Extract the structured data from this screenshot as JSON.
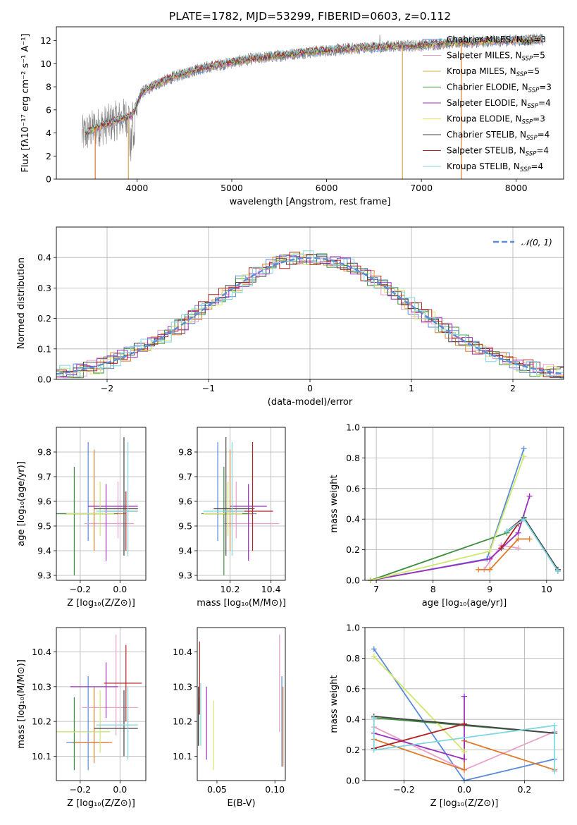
{
  "figure": {
    "title": "PLATE=1782, MJD=53299, FIBERID=0603, z=0.112"
  },
  "chart_data": [
    {
      "id": "spectrum",
      "type": "line",
      "xlabel": "wavelength [Angstrom, rest frame]",
      "ylabel": "Flux [fλ10⁻¹⁷ erg cm⁻² s⁻¹ A⁻¹]",
      "xlim": [
        3150,
        8500
      ],
      "ylim": [
        0,
        13.2
      ],
      "xticks": [
        4000,
        5000,
        6000,
        7000,
        8000
      ],
      "yticks": [
        0,
        2,
        4,
        6,
        8,
        10,
        12
      ],
      "grid": false,
      "legend_position": "top-right",
      "data_color": "#808080",
      "continuum": {
        "x": [
          3420,
          3550,
          3700,
          3850,
          3950,
          4050,
          4200,
          4400,
          4600,
          4800,
          5000,
          5200,
          5500,
          5800,
          6100,
          6400,
          6700,
          7000,
          7300,
          7600,
          7900,
          8280
        ],
        "y": [
          3.8,
          4.4,
          4.8,
          5.3,
          5.5,
          7.5,
          8.2,
          8.9,
          9.4,
          9.8,
          10.1,
          10.4,
          10.7,
          11.0,
          11.2,
          11.4,
          11.5,
          11.6,
          11.8,
          11.9,
          12.0,
          12.1
        ]
      },
      "legend": [
        {
          "name": "Chabrier MILES, Nₛₛₚ=3",
          "label": "Chabrier MILES, N",
          "sub": "SSP",
          "n": "=3",
          "color": "#5b8bd9"
        },
        {
          "name": "Salpeter MILES, Nₛₛₚ=5",
          "label": "Salpeter MILES, N",
          "sub": "SSP",
          "n": "=5",
          "color": "#e8a0c8"
        },
        {
          "name": "Kroupa MILES, Nₛₛₚ=5",
          "label": "Kroupa MILES, N",
          "sub": "SSP",
          "n": "=5",
          "color": "#d9a84a"
        },
        {
          "name": "Chabrier ELODIE, Nₛₛₚ=3",
          "label": "Chabrier ELODIE, N",
          "sub": "SSP",
          "n": "=3",
          "color": "#3e8e3e"
        },
        {
          "name": "Salpeter ELODIE, Nₛₛₚ=4",
          "label": "Salpeter ELODIE, N",
          "sub": "SSP",
          "n": "=4",
          "color": "#9b2fbf"
        },
        {
          "name": "Kroupa ELODIE, Nₛₛₚ=3",
          "label": "Kroupa ELODIE, N",
          "sub": "SSP",
          "n": "=3",
          "color": "#e6e24a"
        },
        {
          "name": "Chabrier STELIB, Nₛₛₚ=4",
          "label": "Chabrier STELIB, N",
          "sub": "SSP",
          "n": "=4",
          "color": "#444444"
        },
        {
          "name": "Salpeter STELIB, Nₛₛₚ=4",
          "label": "Salpeter STELIB, N",
          "sub": "SSP",
          "n": "=4",
          "color": "#b22222"
        },
        {
          "name": "Kroupa STELIB, Nₛₛₚ=4",
          "label": "Kroupa STELIB, N",
          "sub": "SSP",
          "n": "=4",
          "color": "#7fd6e0"
        }
      ]
    },
    {
      "id": "residuals",
      "type": "line",
      "xlabel": "(data-model)/error",
      "ylabel": "Normed distribution",
      "xlim": [
        -2.5,
        2.5
      ],
      "ylim": [
        0,
        0.5
      ],
      "xticks": [
        -2,
        -1,
        0,
        1,
        2
      ],
      "xtick_labels": [
        "−2",
        "−1",
        "0",
        "1",
        "2"
      ],
      "yticks": [
        0.0,
        0.1,
        0.2,
        0.3,
        0.4
      ],
      "grid": true,
      "legend_position": "top-right",
      "reference_curve": {
        "name": "N(0,1)",
        "label": "𝒩(0, 1)",
        "color": "#5b8bd9",
        "style": "dashed"
      },
      "histogram_colors": [
        "#5b8bd9",
        "#e8a0c8",
        "#e07a2a",
        "#3e8e3e",
        "#9b2fbf",
        "#cfe86a",
        "#444444",
        "#b22222",
        "#7fd6e0"
      ]
    },
    {
      "id": "age_vs_Z",
      "type": "scatter",
      "xlabel": "Z [log₁₀(Z/Z⊙)]",
      "ylabel": "age  [log₁₀(age/yr)]",
      "xlim": [
        -0.32,
        0.13
      ],
      "ylim": [
        9.28,
        9.9
      ],
      "xticks": [
        -0.2,
        0.0
      ],
      "xtick_labels": [
        "−0.2",
        "0.0"
      ],
      "yticks": [
        9.3,
        9.4,
        9.5,
        9.6,
        9.7,
        9.8
      ],
      "grid": true,
      "series": [
        {
          "x": -0.16,
          "y": 9.55,
          "xerr": [
            0.16,
            0.09
          ],
          "yerr": [
            0.11,
            0.29
          ],
          "color": "#5b8bd9"
        },
        {
          "x": -0.01,
          "y": 9.51,
          "xerr": [
            0.17,
            0.08
          ],
          "yerr": [
            0.06,
            0.17
          ],
          "color": "#e8a0c8"
        },
        {
          "x": -0.13,
          "y": 9.55,
          "xerr": [
            0.17,
            0.16
          ],
          "yerr": [
            0.15,
            0.26
          ],
          "color": "#e07a2a"
        },
        {
          "x": -0.23,
          "y": 9.55,
          "xerr": [
            0.09,
            0.22
          ],
          "yerr": [
            0.25,
            0.19
          ],
          "color": "#3e8e3e"
        },
        {
          "x": -0.07,
          "y": 9.58,
          "xerr": [
            0.09,
            0.16
          ],
          "yerr": [
            0.22,
            0.09
          ],
          "color": "#9b2fbf"
        },
        {
          "x": -0.1,
          "y": 9.55,
          "xerr": [
            0.17,
            0.07
          ],
          "yerr": [
            0.09,
            0.13
          ],
          "color": "#cfe86a"
        },
        {
          "x": 0.02,
          "y": 9.57,
          "xerr": [
            0.15,
            0.07
          ],
          "yerr": [
            0.19,
            0.29
          ],
          "color": "#444444"
        },
        {
          "x": 0.03,
          "y": 9.56,
          "xerr": [
            0.11,
            0.06
          ],
          "yerr": [
            0.16,
            0.08
          ],
          "color": "#b22222"
        },
        {
          "x": 0.04,
          "y": 9.56,
          "xerr": [
            0.16,
            0.05
          ],
          "yerr": [
            0.18,
            0.28
          ],
          "color": "#7fd6e0"
        }
      ]
    },
    {
      "id": "age_vs_mass",
      "type": "scatter",
      "xlabel": "mass [log₁₀(M/M⊙)]",
      "ylabel": "",
      "xlim": [
        10.04,
        10.47
      ],
      "ylim": [
        9.28,
        9.9
      ],
      "xticks": [
        10.2,
        10.4
      ],
      "yticks": [
        9.3,
        9.4,
        9.5,
        9.6,
        9.7,
        9.8
      ],
      "grid": true,
      "series": [
        {
          "x": 10.14,
          "y": 9.55,
          "xerr": [
            0.06,
            0.19
          ],
          "yerr": [
            0.11,
            0.29
          ],
          "color": "#5b8bd9"
        },
        {
          "x": 10.23,
          "y": 9.51,
          "xerr": [
            0.06,
            0.21
          ],
          "yerr": [
            0.06,
            0.17
          ],
          "color": "#e8a0c8"
        },
        {
          "x": 10.2,
          "y": 9.55,
          "xerr": [
            0.13,
            0.11
          ],
          "yerr": [
            0.15,
            0.26
          ],
          "color": "#e07a2a"
        },
        {
          "x": 10.17,
          "y": 9.55,
          "xerr": [
            0.11,
            0.12
          ],
          "yerr": [
            0.25,
            0.19
          ],
          "color": "#3e8e3e"
        },
        {
          "x": 10.29,
          "y": 9.58,
          "xerr": [
            0.09,
            0.09
          ],
          "yerr": [
            0.22,
            0.09
          ],
          "color": "#9b2fbf"
        },
        {
          "x": 10.19,
          "y": 9.55,
          "xerr": [
            0.12,
            0.07
          ],
          "yerr": [
            0.09,
            0.13
          ],
          "color": "#cfe86a"
        },
        {
          "x": 10.18,
          "y": 9.57,
          "xerr": [
            0.06,
            0.14
          ],
          "yerr": [
            0.19,
            0.29
          ],
          "color": "#444444"
        },
        {
          "x": 10.31,
          "y": 9.56,
          "xerr": [
            0.13,
            0.1
          ],
          "yerr": [
            0.16,
            0.28
          ],
          "color": "#b22222"
        },
        {
          "x": 10.21,
          "y": 9.56,
          "xerr": [
            0.14,
            0.06
          ],
          "yerr": [
            0.18,
            0.28
          ],
          "color": "#7fd6e0"
        }
      ]
    },
    {
      "id": "weight_vs_age",
      "type": "line",
      "xlabel": "age  [log₁₀(age/yr)]",
      "ylabel": "mass weight",
      "xlim": [
        6.8,
        10.3
      ],
      "ylim": [
        0,
        1
      ],
      "xticks": [
        7,
        8,
        9,
        10
      ],
      "yticks": [
        0.0,
        0.2,
        0.4,
        0.6,
        0.8,
        1.0
      ],
      "grid": true,
      "series": [
        {
          "color": "#5b8bd9",
          "x": [
            6.9,
            8.95,
            9.6
          ],
          "y": [
            0.0,
            0.14,
            0.86
          ]
        },
        {
          "color": "#e8a0c8",
          "x": [
            8.9,
            9.2,
            9.5
          ],
          "y": [
            0.07,
            0.23,
            0.21
          ]
        },
        {
          "color": "#e07a2a",
          "x": [
            8.8,
            9.0,
            9.5,
            9.7
          ],
          "y": [
            0.07,
            0.07,
            0.27,
            0.27
          ]
        },
        {
          "color": "#3e8e3e",
          "x": [
            6.9,
            9.3,
            9.6,
            10.2
          ],
          "y": [
            0.0,
            0.31,
            0.41,
            0.06
          ]
        },
        {
          "color": "#9b2fbf",
          "x": [
            6.9,
            9.0,
            9.5,
            9.7
          ],
          "y": [
            0.0,
            0.14,
            0.31,
            0.55
          ]
        },
        {
          "color": "#cfe86a",
          "x": [
            6.9,
            9.0,
            9.6
          ],
          "y": [
            0.0,
            0.19,
            0.81
          ]
        },
        {
          "color": "#444444",
          "x": [
            9.3,
            9.6,
            10.2
          ],
          "y": [
            0.32,
            0.41,
            0.07
          ]
        },
        {
          "color": "#b22222",
          "x": [
            9.2,
            9.5
          ],
          "y": [
            0.21,
            0.37
          ]
        },
        {
          "color": "#7fd6e0",
          "x": [
            9.3,
            9.6,
            10.2
          ],
          "y": [
            0.32,
            0.4,
            0.06
          ]
        }
      ]
    },
    {
      "id": "mass_vs_Z",
      "type": "scatter",
      "xlabel": "Z [log₁₀(Z/Z⊙)]",
      "ylabel": "mass [log₁₀(M/M⊙)]",
      "xlim": [
        -0.32,
        0.13
      ],
      "ylim": [
        10.03,
        10.47
      ],
      "xticks": [
        -0.2,
        0.0
      ],
      "xtick_labels": [
        "−0.2",
        "0.0"
      ],
      "yticks": [
        10.1,
        10.2,
        10.3,
        10.4
      ],
      "grid": true,
      "series": [
        {
          "x": -0.16,
          "y": 10.14,
          "xerr": [
            0.11,
            0.1
          ],
          "yerr": [
            0.08,
            0.19
          ],
          "color": "#5b8bd9"
        },
        {
          "x": -0.02,
          "y": 10.24,
          "xerr": [
            0.17,
            0.11
          ],
          "yerr": [
            0.08,
            0.21
          ],
          "color": "#e8a0c8"
        },
        {
          "x": -0.13,
          "y": 10.14,
          "xerr": [
            0.11,
            0.09
          ],
          "yerr": [
            0.06,
            0.16
          ],
          "color": "#e07a2a"
        },
        {
          "x": -0.23,
          "y": 10.17,
          "xerr": [
            0.09,
            0.18
          ],
          "yerr": [
            0.11,
            0.1
          ],
          "color": "#3e8e3e"
        },
        {
          "x": -0.07,
          "y": 10.3,
          "xerr": [
            0.18,
            0.06
          ],
          "yerr": [
            0.09,
            0.07
          ],
          "color": "#9b2fbf"
        },
        {
          "x": -0.1,
          "y": 10.17,
          "xerr": [
            0.22,
            0.05
          ],
          "yerr": [
            0.06,
            0.12
          ],
          "color": "#cfe86a"
        },
        {
          "x": 0.02,
          "y": 10.18,
          "xerr": [
            0.15,
            0.07
          ],
          "yerr": [
            0.08,
            0.11
          ],
          "color": "#444444"
        },
        {
          "x": 0.03,
          "y": 10.31,
          "xerr": [
            0.11,
            0.08
          ],
          "yerr": [
            0.11,
            0.11
          ],
          "color": "#b22222"
        },
        {
          "x": 0.04,
          "y": 10.19,
          "xerr": [
            0.16,
            0.05
          ],
          "yerr": [
            0.1,
            0.11
          ],
          "color": "#7fd6e0"
        }
      ]
    },
    {
      "id": "mass_vs_EBV",
      "type": "scatter",
      "xlabel": "E(B-V)",
      "ylabel": "",
      "xlim": [
        0.033,
        0.109
      ],
      "ylim": [
        10.03,
        10.47
      ],
      "xticks": [
        0.05,
        0.1
      ],
      "xtick_labels": [
        "0.05",
        "0.10"
      ],
      "yticks": [
        10.1,
        10.2,
        10.3,
        10.4
      ],
      "grid": false,
      "series": [
        {
          "x": 0.106,
          "y": 10.2,
          "yerr": [
            0.13,
            0.13
          ],
          "color": "#5b8bd9"
        },
        {
          "x": 0.104,
          "y": 10.3,
          "yerr": [
            0.13,
            0.15
          ],
          "color": "#e8a0c8"
        },
        {
          "x": 0.107,
          "y": 10.2,
          "yerr": [
            0.13,
            0.1
          ],
          "color": "#e07a2a"
        },
        {
          "x": 0.034,
          "y": 10.2,
          "yerr": [
            0.07,
            0.07
          ],
          "color": "#3e8e3e"
        },
        {
          "x": 0.041,
          "y": 10.2,
          "yerr": [
            0.11,
            0.1
          ],
          "color": "#9b2fbf"
        },
        {
          "x": 0.047,
          "y": 10.16,
          "yerr": [
            0.1,
            0.1
          ],
          "color": "#cfe86a"
        },
        {
          "x": 0.034,
          "y": 10.22,
          "yerr": [
            0.09,
            0.08
          ],
          "color": "#444444"
        },
        {
          "x": 0.035,
          "y": 10.3,
          "yerr": [
            0.08,
            0.13
          ],
          "color": "#b22222"
        },
        {
          "x": 0.036,
          "y": 10.23,
          "yerr": [
            0.1,
            0.08
          ],
          "color": "#7fd6e0"
        }
      ]
    },
    {
      "id": "weight_vs_Z",
      "type": "line",
      "xlabel": "Z [log₁₀(Z/Z⊙)]",
      "ylabel": "mass weight",
      "xlim": [
        -0.33,
        0.33
      ],
      "ylim": [
        0,
        1
      ],
      "xticks": [
        -0.2,
        0.0,
        0.2
      ],
      "xtick_labels": [
        "−0.2",
        "0.0",
        "0.2"
      ],
      "yticks": [
        0.0,
        0.2,
        0.4,
        0.6,
        0.8,
        1.0
      ],
      "grid": true,
      "series": [
        {
          "color": "#5b8bd9",
          "x": [
            -0.3,
            0.0,
            0.3
          ],
          "y": [
            0.86,
            0.0,
            0.14
          ]
        },
        {
          "color": "#e8a0c8",
          "x": [
            -0.3,
            0.0,
            0.3
          ],
          "y": [
            0.35,
            0.07,
            0.32
          ]
        },
        {
          "color": "#e07a2a",
          "x": [
            -0.3,
            0.0,
            0.0,
            0.3
          ],
          "y": [
            0.27,
            0.07,
            0.26,
            0.07
          ]
        },
        {
          "color": "#3e8e3e",
          "x": [
            -0.3,
            0.3
          ],
          "y": [
            0.41,
            0.31
          ]
        },
        {
          "color": "#9b2fbf",
          "x": [
            -0.3,
            0.0,
            0.0
          ],
          "y": [
            0.31,
            0.14,
            0.55
          ]
        },
        {
          "color": "#cfe86a",
          "x": [
            -0.3,
            0.0
          ],
          "y": [
            0.81,
            0.19
          ]
        },
        {
          "color": "#444444",
          "x": [
            -0.3,
            0.3
          ],
          "y": [
            0.42,
            0.31
          ]
        },
        {
          "color": "#b22222",
          "x": [
            -0.3,
            0.0
          ],
          "y": [
            0.21,
            0.37
          ]
        },
        {
          "color": "#7fd6e0",
          "x": [
            -0.3,
            -0.3,
            0.3,
            0.3
          ],
          "y": [
            0.41,
            0.2,
            0.36,
            0.06
          ]
        }
      ]
    }
  ]
}
